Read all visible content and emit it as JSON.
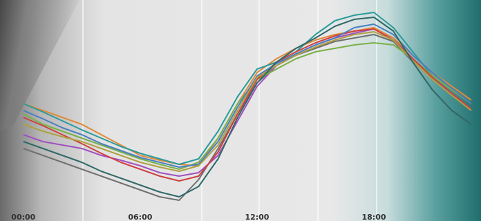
{
  "chart_data": {
    "type": "line",
    "x": [
      0,
      1,
      2,
      3,
      4,
      5,
      6,
      7,
      8,
      9,
      10,
      11,
      12,
      13,
      14,
      15,
      16,
      17,
      18,
      19,
      20,
      21,
      22,
      23
    ],
    "xlim": [
      -1.2,
      23.5
    ],
    "ylim": [
      0,
      320
    ],
    "xticks": [
      {
        "value": 0,
        "label": "00:00"
      },
      {
        "value": 6,
        "label": "06:00"
      },
      {
        "value": 12,
        "label": "12:00"
      },
      {
        "value": 18,
        "label": "18:00"
      }
    ],
    "series": [
      {
        "color": "#707070",
        "values": [
          105,
          95,
          85,
          75,
          65,
          55,
          45,
          35,
          30,
          60,
          105,
          155,
          200,
          225,
          240,
          250,
          260,
          265,
          270,
          260,
          230,
          190,
          160,
          140
        ]
      },
      {
        "color": "#a050c0",
        "values": [
          125,
          115,
          110,
          105,
          95,
          88,
          80,
          70,
          65,
          70,
          95,
          145,
          195,
          225,
          242,
          255,
          265,
          272,
          278,
          265,
          235,
          210,
          190,
          170
        ]
      },
      {
        "color": "#e08a3a",
        "values": [
          170,
          160,
          150,
          140,
          125,
          110,
          95,
          88,
          82,
          80,
          120,
          170,
          215,
          235,
          250,
          262,
          270,
          275,
          280,
          265,
          240,
          215,
          195,
          175
        ]
      },
      {
        "color": "#2a9a9a",
        "values": [
          170,
          158,
          145,
          132,
          120,
          108,
          98,
          90,
          82,
          90,
          130,
          180,
          220,
          230,
          245,
          270,
          290,
          298,
          302,
          280,
          245,
          210,
          185,
          160
        ]
      },
      {
        "color": "#7ab04a",
        "values": [
          155,
          140,
          130,
          120,
          110,
          100,
          90,
          82,
          75,
          85,
          120,
          170,
          205,
          220,
          235,
          245,
          250,
          255,
          258,
          255,
          235,
          210,
          190,
          170
        ]
      },
      {
        "color": "#d04040",
        "values": [
          150,
          138,
          125,
          112,
          98,
          85,
          75,
          65,
          58,
          65,
          100,
          155,
          205,
          230,
          245,
          258,
          268,
          275,
          278,
          262,
          235,
          208,
          185,
          162
        ]
      },
      {
        "color": "#4a80c0",
        "values": [
          160,
          148,
          135,
          125,
          112,
          102,
          92,
          85,
          78,
          82,
          115,
          165,
          210,
          228,
          242,
          255,
          265,
          280,
          285,
          270,
          240,
          215,
          192,
          170
        ]
      },
      {
        "color": "#b0a040",
        "values": [
          140,
          130,
          122,
          115,
          105,
          95,
          85,
          78,
          72,
          80,
          110,
          160,
          208,
          225,
          240,
          252,
          262,
          270,
          274,
          262,
          232,
          205,
          182,
          160
        ]
      },
      {
        "color": "#306868",
        "values": [
          115,
          105,
          95,
          85,
          72,
          62,
          52,
          42,
          35,
          50,
          90,
          150,
          200,
          230,
          250,
          265,
          282,
          292,
          295,
          275,
          230,
          190,
          160,
          140
        ]
      }
    ]
  }
}
